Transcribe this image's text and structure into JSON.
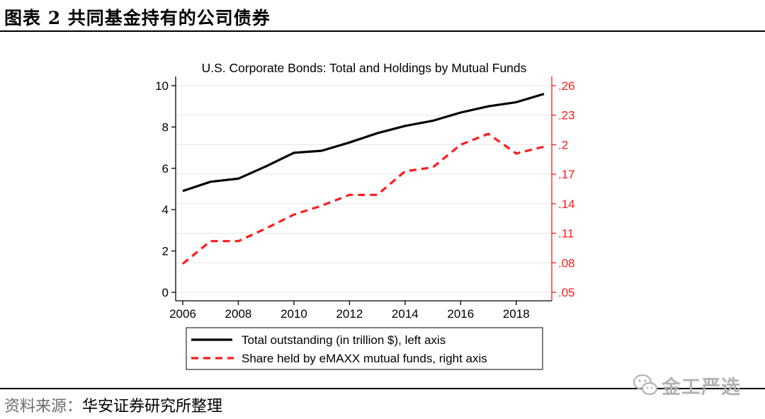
{
  "figure": {
    "title": "图表 2 共同基金持有的公司债券",
    "source_label": "资料来源：",
    "source_text": "华安证券研究所整理",
    "watermark": "金工严选"
  },
  "colors": {
    "left_series": "#000000",
    "right_series": "#ff1a1a",
    "grid": "#e6e6e6"
  },
  "chart_data": {
    "type": "line",
    "title": "U.S. Corporate Bonds: Total and Holdings by Mutual Funds",
    "xlim": [
      2006,
      2019
    ],
    "x_ticks": [
      2006,
      2008,
      2010,
      2012,
      2014,
      2016,
      2018
    ],
    "x_tick_labels": [
      "2006",
      "2008",
      "2010",
      "2012",
      "2014",
      "2016",
      "2018"
    ],
    "left_axis": {
      "ylim": [
        0,
        10
      ],
      "ticks": [
        0,
        2,
        4,
        6,
        8,
        10
      ],
      "tick_labels": [
        "0",
        "2",
        "4",
        "6",
        "8",
        "10"
      ]
    },
    "right_axis": {
      "ylim": [
        0.05,
        0.26
      ],
      "ticks": [
        0.05,
        0.08,
        0.11,
        0.14,
        0.17,
        0.2,
        0.23,
        0.26
      ],
      "tick_labels": [
        ".05",
        ".08",
        ".11",
        ".14",
        ".17",
        ".2",
        ".23",
        ".26"
      ]
    },
    "x": [
      2006,
      2007,
      2008,
      2009,
      2010,
      2011,
      2012,
      2013,
      2014,
      2015,
      2016,
      2017,
      2018,
      2019
    ],
    "series": [
      {
        "name": "Total outstanding (in trillion $), left axis",
        "axis": "left",
        "style": "solid",
        "values": [
          4.9,
          5.35,
          5.5,
          6.1,
          6.75,
          6.85,
          7.25,
          7.7,
          8.05,
          8.3,
          8.7,
          9.0,
          9.2,
          9.6
        ]
      },
      {
        "name": "Share held by eMAXX mutual funds, right axis",
        "axis": "right",
        "style": "dashed",
        "values": [
          0.079,
          0.102,
          0.102,
          0.115,
          0.129,
          0.138,
          0.149,
          0.149,
          0.173,
          0.177,
          0.2,
          0.211,
          0.191,
          0.198
        ]
      }
    ]
  }
}
